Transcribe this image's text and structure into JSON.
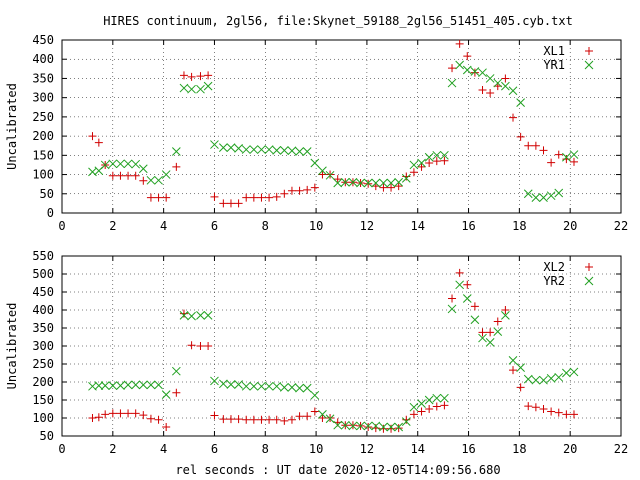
{
  "title": "HIRES continuum, 2gl56, file:Skynet_59188_2gl56_51451_405.cyb.txt",
  "xlabel": "rel seconds : UT date 2020-12-05T14:09:56.680",
  "chart_data": [
    {
      "type": "scatter",
      "ylabel": "Uncalibrated",
      "xlim": [
        0,
        22
      ],
      "ylim": [
        0,
        450
      ],
      "xticks": [
        0,
        2,
        4,
        6,
        8,
        10,
        12,
        14,
        16,
        18,
        20,
        22
      ],
      "yticks": [
        0,
        50,
        100,
        150,
        200,
        250,
        300,
        350,
        400,
        450
      ],
      "grid": true,
      "legend": "top-right",
      "series": [
        {
          "name": "XL1",
          "marker": "plus",
          "color": "#d00000",
          "points": [
            [
              1.2,
              200
            ],
            [
              1.45,
              183
            ],
            [
              1.7,
              125
            ],
            [
              2.0,
              97
            ],
            [
              2.3,
              97
            ],
            [
              2.6,
              97
            ],
            [
              2.9,
              97
            ],
            [
              3.2,
              84
            ],
            [
              3.5,
              40
            ],
            [
              3.8,
              40
            ],
            [
              4.1,
              40
            ],
            [
              4.5,
              120
            ],
            [
              4.8,
              358
            ],
            [
              5.1,
              354
            ],
            [
              5.45,
              356
            ],
            [
              5.75,
              358
            ],
            [
              6.0,
              42
            ],
            [
              6.35,
              25
            ],
            [
              6.65,
              25
            ],
            [
              6.95,
              25
            ],
            [
              7.25,
              40
            ],
            [
              7.55,
              40
            ],
            [
              7.85,
              40
            ],
            [
              8.15,
              40
            ],
            [
              8.45,
              42
            ],
            [
              8.75,
              50
            ],
            [
              9.05,
              58
            ],
            [
              9.35,
              58
            ],
            [
              9.65,
              60
            ],
            [
              9.95,
              66
            ],
            [
              10.25,
              100
            ],
            [
              10.55,
              100
            ],
            [
              10.85,
              88
            ],
            [
              11.15,
              80
            ],
            [
              11.45,
              80
            ],
            [
              11.75,
              78
            ],
            [
              12.05,
              76
            ],
            [
              12.35,
              70
            ],
            [
              12.65,
              66
            ],
            [
              12.95,
              66
            ],
            [
              13.25,
              70
            ],
            [
              13.55,
              95
            ],
            [
              13.85,
              106
            ],
            [
              14.15,
              120
            ],
            [
              14.45,
              130
            ],
            [
              14.75,
              135
            ],
            [
              15.05,
              136
            ],
            [
              15.35,
              377
            ],
            [
              15.65,
              440
            ],
            [
              15.95,
              408
            ],
            [
              16.25,
              365
            ],
            [
              16.55,
              320
            ],
            [
              16.85,
              312
            ],
            [
              17.15,
              330
            ],
            [
              17.45,
              350
            ],
            [
              17.75,
              248
            ],
            [
              18.05,
              198
            ],
            [
              18.35,
              175
            ],
            [
              18.65,
              175
            ],
            [
              18.95,
              163
            ],
            [
              19.25,
              131
            ],
            [
              19.55,
              152
            ],
            [
              19.85,
              140
            ],
            [
              20.15,
              133
            ]
          ]
        },
        {
          "name": "YR1",
          "marker": "cross",
          "color": "#20a020",
          "points": [
            [
              1.2,
              107
            ],
            [
              1.45,
              110
            ],
            [
              1.7,
              125
            ],
            [
              2.0,
              128
            ],
            [
              2.3,
              128
            ],
            [
              2.6,
              128
            ],
            [
              2.9,
              127
            ],
            [
              3.2,
              115
            ],
            [
              3.5,
              85
            ],
            [
              3.8,
              85
            ],
            [
              4.1,
              100
            ],
            [
              4.5,
              160
            ],
            [
              4.8,
              325
            ],
            [
              5.1,
              322
            ],
            [
              5.45,
              322
            ],
            [
              5.75,
              330
            ],
            [
              6.0,
              178
            ],
            [
              6.35,
              170
            ],
            [
              6.65,
              170
            ],
            [
              6.95,
              168
            ],
            [
              7.25,
              165
            ],
            [
              7.55,
              165
            ],
            [
              7.85,
              165
            ],
            [
              8.15,
              165
            ],
            [
              8.45,
              163
            ],
            [
              8.75,
              163
            ],
            [
              9.05,
              162
            ],
            [
              9.35,
              160
            ],
            [
              9.65,
              160
            ],
            [
              9.95,
              130
            ],
            [
              10.25,
              110
            ],
            [
              10.55,
              98
            ],
            [
              10.85,
              78
            ],
            [
              11.15,
              80
            ],
            [
              11.45,
              80
            ],
            [
              11.75,
              78
            ],
            [
              12.05,
              78
            ],
            [
              12.35,
              78
            ],
            [
              12.65,
              78
            ],
            [
              12.95,
              78
            ],
            [
              13.25,
              80
            ],
            [
              13.55,
              90
            ],
            [
              13.85,
              125
            ],
            [
              14.15,
              130
            ],
            [
              14.45,
              145
            ],
            [
              14.75,
              150
            ],
            [
              15.05,
              150
            ],
            [
              15.35,
              338
            ],
            [
              15.65,
              385
            ],
            [
              15.95,
              372
            ],
            [
              16.25,
              368
            ],
            [
              16.55,
              365
            ],
            [
              16.85,
              350
            ],
            [
              17.15,
              338
            ],
            [
              17.45,
              330
            ],
            [
              17.75,
              318
            ],
            [
              18.05,
              287
            ],
            [
              18.35,
              50
            ],
            [
              18.65,
              40
            ],
            [
              18.95,
              40
            ],
            [
              19.25,
              45
            ],
            [
              19.55,
              52
            ],
            [
              19.85,
              145
            ],
            [
              20.15,
              152
            ]
          ]
        }
      ]
    },
    {
      "type": "scatter",
      "ylabel": "Uncalibrated",
      "xlim": [
        0,
        22
      ],
      "ylim": [
        50,
        550
      ],
      "xticks": [
        0,
        2,
        4,
        6,
        8,
        10,
        12,
        14,
        16,
        18,
        20,
        22
      ],
      "yticks": [
        50,
        100,
        150,
        200,
        250,
        300,
        350,
        400,
        450,
        500,
        550
      ],
      "grid": true,
      "legend": "top-right",
      "series": [
        {
          "name": "XL2",
          "marker": "plus",
          "color": "#d00000",
          "points": [
            [
              1.2,
              100
            ],
            [
              1.45,
              102
            ],
            [
              1.7,
              110
            ],
            [
              2.0,
              113
            ],
            [
              2.3,
              113
            ],
            [
              2.6,
              113
            ],
            [
              2.9,
              113
            ],
            [
              3.2,
              108
            ],
            [
              3.5,
              98
            ],
            [
              3.8,
              95
            ],
            [
              4.1,
              75
            ],
            [
              4.5,
              170
            ],
            [
              4.8,
              390
            ],
            [
              5.1,
              302
            ],
            [
              5.45,
              300
            ],
            [
              5.75,
              300
            ],
            [
              6.0,
              107
            ],
            [
              6.35,
              97
            ],
            [
              6.65,
              97
            ],
            [
              6.95,
              97
            ],
            [
              7.25,
              95
            ],
            [
              7.55,
              95
            ],
            [
              7.85,
              95
            ],
            [
              8.15,
              95
            ],
            [
              8.45,
              95
            ],
            [
              8.75,
              92
            ],
            [
              9.05,
              95
            ],
            [
              9.35,
              105
            ],
            [
              9.65,
              105
            ],
            [
              9.95,
              118
            ],
            [
              10.25,
              100
            ],
            [
              10.55,
              100
            ],
            [
              10.85,
              88
            ],
            [
              11.15,
              80
            ],
            [
              11.45,
              80
            ],
            [
              11.75,
              78
            ],
            [
              12.05,
              75
            ],
            [
              12.35,
              72
            ],
            [
              12.65,
              70
            ],
            [
              12.95,
              70
            ],
            [
              13.25,
              72
            ],
            [
              13.55,
              95
            ],
            [
              13.85,
              110
            ],
            [
              14.15,
              118
            ],
            [
              14.45,
              125
            ],
            [
              14.75,
              132
            ],
            [
              15.05,
              135
            ],
            [
              15.35,
              432
            ],
            [
              15.65,
              503
            ],
            [
              15.95,
              470
            ],
            [
              16.25,
              410
            ],
            [
              16.55,
              338
            ],
            [
              16.85,
              338
            ],
            [
              17.15,
              368
            ],
            [
              17.45,
              400
            ],
            [
              17.75,
              233
            ],
            [
              18.05,
              185
            ],
            [
              18.35,
              133
            ],
            [
              18.65,
              130
            ],
            [
              18.95,
              125
            ],
            [
              19.25,
              118
            ],
            [
              19.55,
              115
            ],
            [
              19.85,
              110
            ],
            [
              20.15,
              110
            ]
          ]
        },
        {
          "name": "YR2",
          "marker": "cross",
          "color": "#20a020",
          "points": [
            [
              1.2,
              188
            ],
            [
              1.45,
              190
            ],
            [
              1.7,
              190
            ],
            [
              2.0,
              190
            ],
            [
              2.3,
              190
            ],
            [
              2.6,
              192
            ],
            [
              2.9,
              192
            ],
            [
              3.2,
              192
            ],
            [
              3.5,
              192
            ],
            [
              3.8,
              192
            ],
            [
              4.1,
              165
            ],
            [
              4.5,
              230
            ],
            [
              4.8,
              385
            ],
            [
              5.1,
              383
            ],
            [
              5.45,
              385
            ],
            [
              5.75,
              385
            ],
            [
              6.0,
              203
            ],
            [
              6.35,
              195
            ],
            [
              6.65,
              193
            ],
            [
              6.95,
              193
            ],
            [
              7.25,
              188
            ],
            [
              7.55,
              188
            ],
            [
              7.85,
              188
            ],
            [
              8.15,
              188
            ],
            [
              8.45,
              188
            ],
            [
              8.75,
              185
            ],
            [
              9.05,
              185
            ],
            [
              9.35,
              183
            ],
            [
              9.65,
              183
            ],
            [
              9.95,
              163
            ],
            [
              10.25,
              110
            ],
            [
              10.55,
              98
            ],
            [
              10.85,
              80
            ],
            [
              11.15,
              80
            ],
            [
              11.45,
              78
            ],
            [
              11.75,
              78
            ],
            [
              12.05,
              78
            ],
            [
              12.35,
              78
            ],
            [
              12.65,
              75
            ],
            [
              12.95,
              75
            ],
            [
              13.25,
              75
            ],
            [
              13.55,
              90
            ],
            [
              13.85,
              130
            ],
            [
              14.15,
              140
            ],
            [
              14.45,
              150
            ],
            [
              14.75,
              155
            ],
            [
              15.05,
              155
            ],
            [
              15.35,
              403
            ],
            [
              15.65,
              470
            ],
            [
              15.95,
              432
            ],
            [
              16.25,
              373
            ],
            [
              16.55,
              322
            ],
            [
              16.85,
              310
            ],
            [
              17.15,
              340
            ],
            [
              17.45,
              385
            ],
            [
              17.75,
              260
            ],
            [
              18.05,
              240
            ],
            [
              18.35,
              208
            ],
            [
              18.65,
              205
            ],
            [
              18.95,
              205
            ],
            [
              19.25,
              210
            ],
            [
              19.55,
              213
            ],
            [
              19.85,
              225
            ],
            [
              20.15,
              228
            ]
          ]
        }
      ]
    }
  ]
}
